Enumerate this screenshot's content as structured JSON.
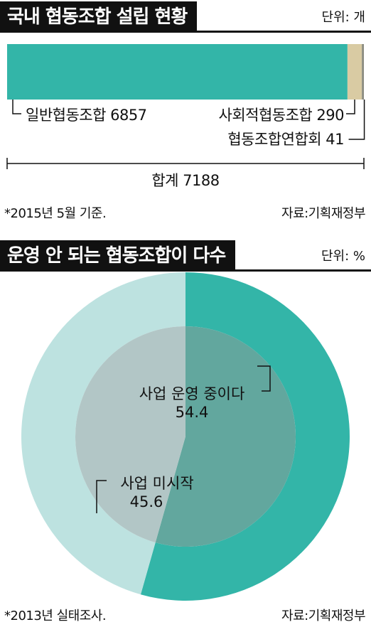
{
  "section1": {
    "title": "국내 협동조합 설립 현황",
    "unit": "단위: 개",
    "footnote": "*2015년 5월 기준.",
    "source": "자료:기획재정부"
  },
  "section2": {
    "title": "운영 안 되는 협동조합이 다수",
    "unit": "단위: %",
    "footnote": "*2013년 실태조사.",
    "source": "자료:기획재정부"
  },
  "colors": {
    "teal": "#33b5a8",
    "tan": "#d9cba3",
    "gray": "#8c8c80",
    "light_teal": "#bde2e0",
    "inner_teal": "#62a79e",
    "inner_gray": "#b2c6c6"
  },
  "chart_data": [
    {
      "type": "bar",
      "orientation": "horizontal-stacked",
      "categories": [
        "일반협동조합",
        "사회적협동조합",
        "협동조합연합회"
      ],
      "values": [
        6857,
        290,
        41
      ],
      "data_labels": [
        "일반협동조합 6857",
        "사회적협동조합 290",
        "협동조합연합회 41"
      ],
      "total": 7188,
      "total_label": "합계 7188"
    },
    {
      "type": "pie",
      "style": "donut",
      "categories": [
        "사업 운영 중이다",
        "사업 미시작"
      ],
      "values": [
        54.4,
        45.6
      ],
      "value_labels": [
        "54.4",
        "45.6"
      ]
    }
  ]
}
